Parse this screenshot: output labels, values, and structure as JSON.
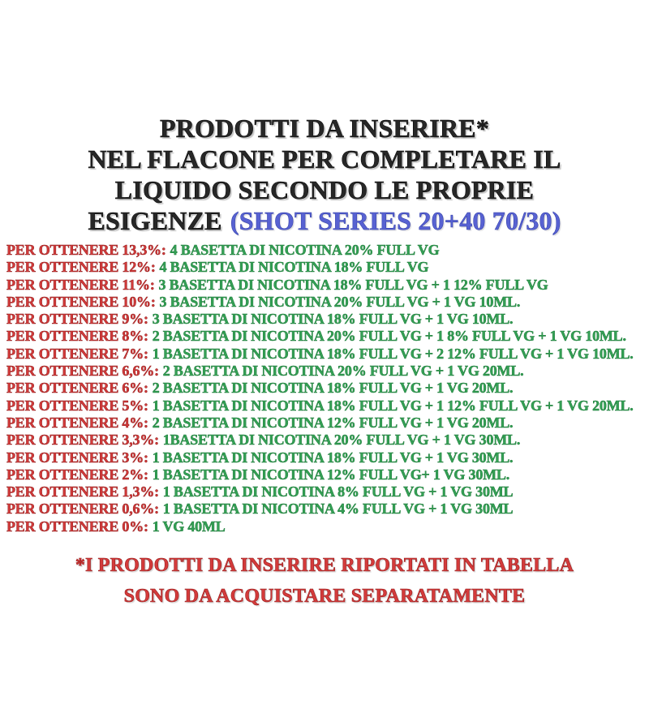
{
  "colors": {
    "background": "#ffffff",
    "title_black": "#1d1d1d",
    "accent_blue": "#5862d2",
    "recipe_red": "#d33b3b",
    "recipe_green": "#35a156",
    "footnote_red": "#d43b3b"
  },
  "title": {
    "lines": [
      "PRODOTTI DA INSERIRE*",
      "NEL FLACONE PER COMPLETARE IL",
      "LIQUIDO SECONDO LE PROPRIE"
    ],
    "last_line_black": "ESIGENZE",
    "last_line_blue": "(SHOT SERIES 20+40 70/30)"
  },
  "recipes": [
    {
      "target": "PER OTTENERE 13,3%:",
      "products": "4 BASETTA DI NICOTINA 20% FULL VG"
    },
    {
      "target": "PER OTTENERE 12%:",
      "products": "4 BASETTA DI NICOTINA 18% FULL VG"
    },
    {
      "target": "PER OTTENERE 11%:",
      "products": "3 BASETTA DI NICOTINA 18% FULL VG + 1 12% FULL VG"
    },
    {
      "target": "PER OTTENERE 10%:",
      "products": "3 BASETTA DI NICOTINA 20% FULL VG + 1 VG 10ML."
    },
    {
      "target": "PER OTTENERE 9%:",
      "products": "3 BASETTA DI NICOTINA 18% FULL VG + 1 VG 10ML."
    },
    {
      "target": "PER OTTENERE 8%:",
      "products": "2 BASETTA DI NICOTINA 20% FULL VG + 1 8% FULL VG + 1 VG 10ML."
    },
    {
      "target": "PER OTTENERE 7%:",
      "products": "1 BASETTA DI NICOTINA 18% FULL VG + 2 12% FULL VG + 1 VG 10ML."
    },
    {
      "target": "PER OTTENERE 6,6%:",
      "products": "2 BASETTA DI NICOTINA 20% FULL VG + 1 VG 20ML."
    },
    {
      "target": "PER OTTENERE 6%:",
      "products": "2 BASETTA DI NICOTINA 18% FULL VG + 1 VG 20ML."
    },
    {
      "target": "PER OTTENERE 5%:",
      "products": "1 BASETTA DI NICOTINA 18% FULL VG + 1 12% FULL VG + 1 VG 20ML."
    },
    {
      "target": "PER OTTENERE 4%:",
      "products": "2 BASETTA DI NICOTINA 12% FULL VG + 1 VG 20ML."
    },
    {
      "target": "PER OTTENERE 3,3%:",
      "products": "1BASETTA DI NICOTINA 20% FULL VG + 1 VG 30ML."
    },
    {
      "target": "PER OTTENERE 3%:",
      "products": "1 BASETTA DI NICOTINA 18% FULL VG + 1 VG 30ML."
    },
    {
      "target": "PER OTTENERE 2%:",
      "products": "1 BASETTA DI NICOTINA 12% FULL VG+ 1 VG 30ML."
    },
    {
      "target": "PER OTTENERE 1,3%:",
      "products": "1 BASETTA DI NICOTINA 8% FULL VG + 1 VG 30ML"
    },
    {
      "target": "PER OTTENERE 0,6%:",
      "products": "1 BASETTA DI NICOTINA 4% FULL VG + 1 VG 30ML"
    },
    {
      "target": "PER OTTENERE 0%:",
      "products": "1 VG 40ML"
    }
  ],
  "footnote": {
    "lines": [
      "*I PRODOTTI DA INSERIRE RIPORTATI IN TABELLA",
      "SONO DA ACQUISTARE SEPARATAMENTE"
    ]
  }
}
